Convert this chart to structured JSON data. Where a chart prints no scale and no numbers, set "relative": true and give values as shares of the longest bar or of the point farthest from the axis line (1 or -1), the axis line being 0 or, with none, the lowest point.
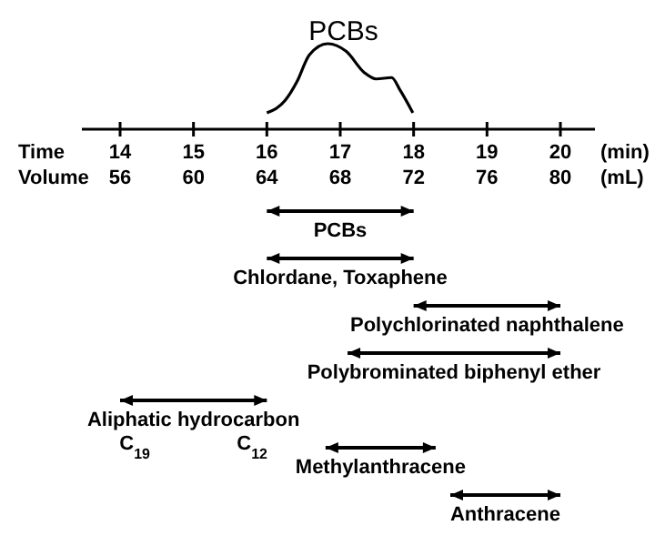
{
  "chart_data": [
    {
      "type": "line",
      "title": "PCBs",
      "relative": true,
      "xlim": [
        14,
        20
      ],
      "series": [
        {
          "color": "#000000",
          "x": [
            16.0,
            16.25,
            16.41,
            16.58,
            16.83,
            17.08,
            17.33,
            17.49,
            17.7,
            17.82,
            17.99
          ],
          "values": [
            0,
            0.18,
            0.45,
            0.84,
            1,
            0.89,
            0.58,
            0.49,
            0.51,
            0.32,
            0
          ]
        }
      ]
    },
    {
      "type": "bar",
      "orientation": "horizontal",
      "xlabel": "Time",
      "x2label": "Volume",
      "xlim": [
        14,
        20
      ],
      "xticks": [
        14,
        15,
        16,
        17,
        18,
        19,
        20
      ],
      "x2lim": [
        56,
        80
      ],
      "x2ticks": [
        56,
        60,
        64,
        68,
        72,
        76,
        80
      ],
      "color": "#000000",
      "categories": [
        "PCBs",
        "Chlordane, Toxaphene",
        "Polychlorinated naphthalene",
        "Polybrominated biphenyl ether",
        "Aliphatic hydrocarbon",
        "Methylanthracene",
        "Anthracene"
      ],
      "base": [
        16,
        16,
        18,
        17.1,
        14,
        16.8,
        18.5
      ],
      "values": [
        2,
        2,
        2,
        2.9,
        2,
        1.5,
        1.5
      ],
      "annotations": [
        "(min)",
        "(mL)",
        "C$_{19}$",
        "C$_{12}$"
      ]
    }
  ]
}
